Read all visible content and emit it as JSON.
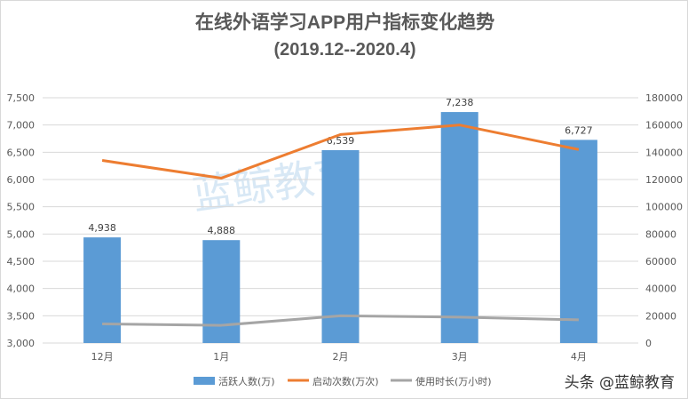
{
  "chart_data": {
    "type": "bar+line",
    "title": "在线外语学习APP用户指标变化趋势",
    "subtitle": "(2019.12--2020.4)",
    "categories": [
      "12月",
      "1月",
      "2月",
      "3月",
      "4月"
    ],
    "series": [
      {
        "name": "活跃人数(万)",
        "type": "bar",
        "axis": "left",
        "color": "#5b9bd5",
        "values": [
          4938,
          4888,
          6539,
          7238,
          6727
        ],
        "labels": [
          "4,938",
          "4,888",
          "6,539",
          "7,238",
          "6,727"
        ]
      },
      {
        "name": "启动次数(万次)",
        "type": "line",
        "axis": "right",
        "color": "#ed7d31",
        "values": [
          134000,
          121000,
          153000,
          160000,
          142000
        ]
      },
      {
        "name": "使用时长(万小时)",
        "type": "line",
        "axis": "right",
        "color": "#a5a5a5",
        "values": [
          14000,
          13000,
          20000,
          19000,
          17000
        ]
      }
    ],
    "left_axis": {
      "ylim": [
        3000,
        7500
      ],
      "ticks": [
        "3,000",
        "3,500",
        "4,000",
        "4,500",
        "5,000",
        "5,500",
        "6,000",
        "6,500",
        "7,000",
        "7,500"
      ]
    },
    "right_axis": {
      "ylim": [
        0,
        180000
      ],
      "ticks": [
        "0",
        "20000",
        "40000",
        "60000",
        "80000",
        "100000",
        "120000",
        "140000",
        "160000",
        "180000"
      ]
    },
    "grid": true,
    "legend": "bottom"
  },
  "watermark": "蓝鲸教育 BlueWhale Education",
  "credit": "头条 @蓝鲸教育"
}
